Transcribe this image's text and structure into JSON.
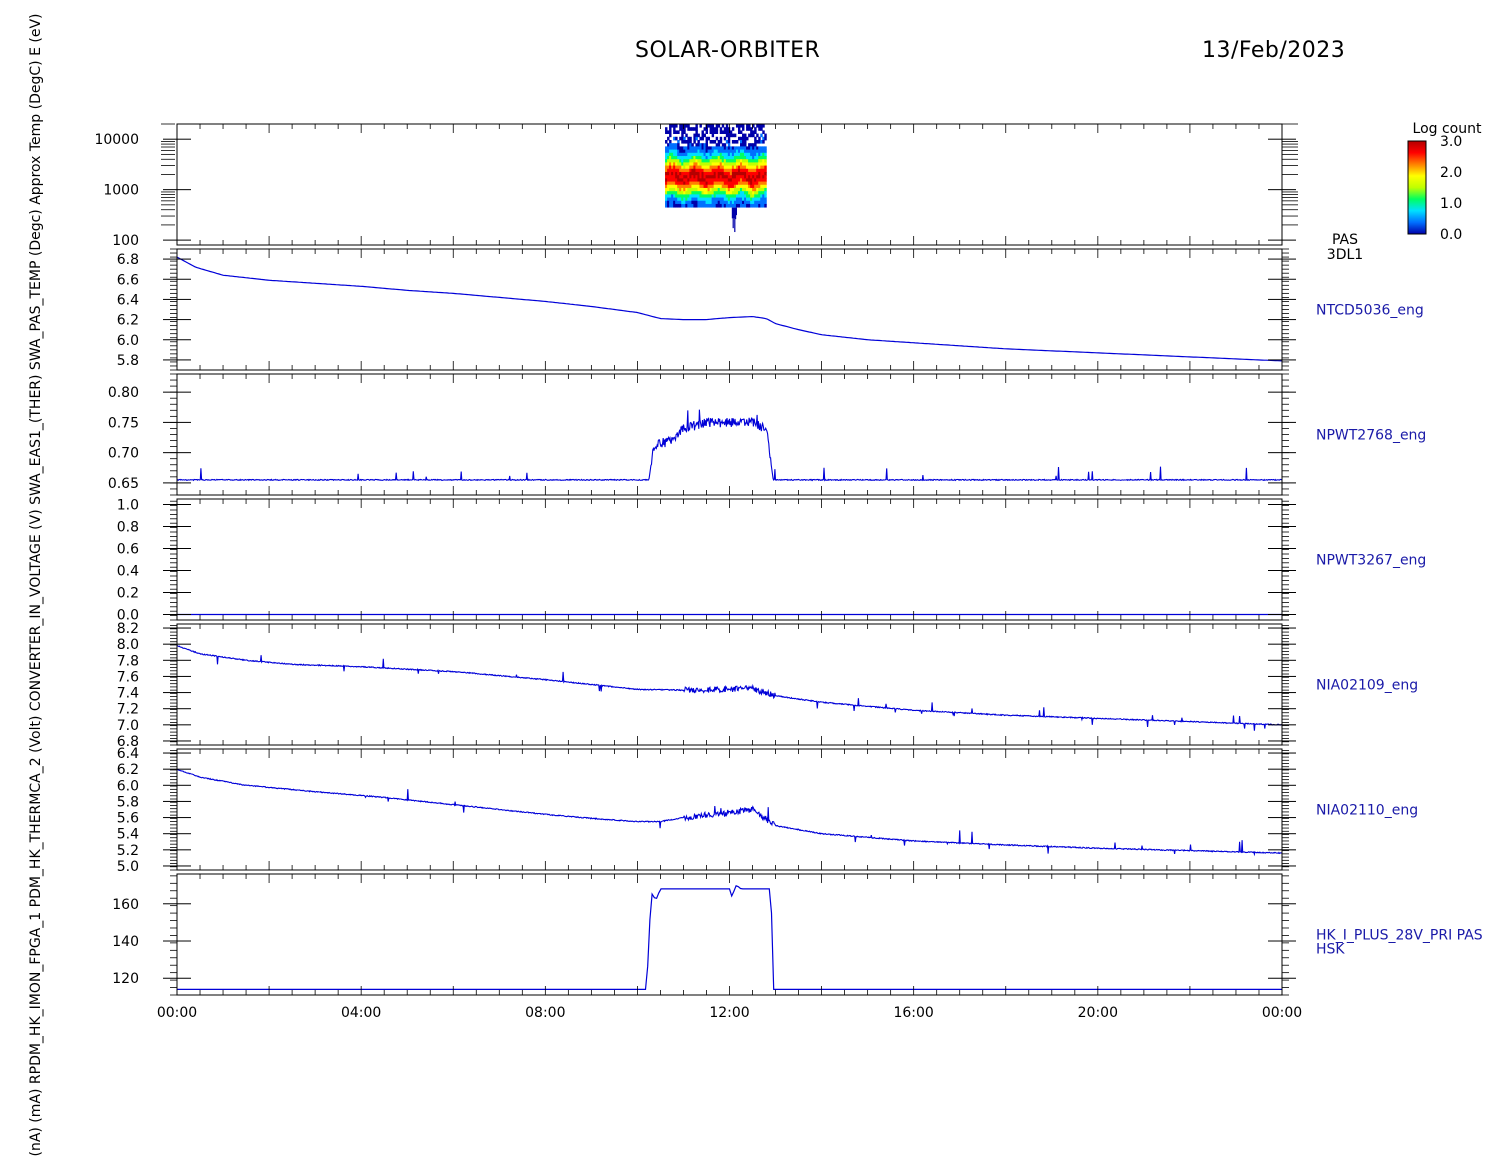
{
  "header": {
    "mission": "SOLAR-ORBITER",
    "date": "13/Feb/2023"
  },
  "side_label": {
    "lines": [
      "(nA)",
      "(mA)",
      "RPDM_HK_IMON_FPGA_1",
      "PDM_HK_THERMCA_2 (Volt)",
      "CONVERTER_IN_VOLTAGE (V)",
      "SWA_EAS1_(THER)",
      "SWA_PAS_TEMP (Degc)",
      "Approx Temp (DegC)",
      "E (eV)"
    ]
  },
  "colorbar": {
    "title": "Log count",
    "ticks": [
      "3.0",
      "2.0",
      "1.0",
      "0.0"
    ],
    "stops": [
      "#0000aa",
      "#0070ff",
      "#00e0ff",
      "#00ff60",
      "#c0ff00",
      "#ffff00",
      "#ff8000",
      "#ff0000",
      "#b40000"
    ]
  },
  "x_axis": {
    "ticks": [
      "00:00",
      "04:00",
      "08:00",
      "12:00",
      "16:00",
      "20:00",
      "00:00"
    ],
    "hours": [
      0,
      4,
      8,
      12,
      16,
      20,
      24
    ],
    "range": [
      0,
      24
    ]
  },
  "colors": {
    "trace": "#0000d8",
    "label": "#1a1aa8",
    "axis": "#000000"
  },
  "chart_data": [
    {
      "type": "heatmap",
      "panel_label": [
        "PAS",
        "3DL1"
      ],
      "y_scale": "log",
      "y_ticks": [
        "10000",
        "1000",
        "100"
      ],
      "y_tick_values": [
        10000,
        1000,
        100
      ],
      "ylim": [
        80,
        20000
      ],
      "x_range": [
        10.6,
        12.8
      ],
      "peak_energy_ev": 1800,
      "log_count_range": [
        0,
        3
      ]
    },
    {
      "type": "line",
      "panel_label": [
        "NTCD5036_eng"
      ],
      "y_ticks": [
        "6.8",
        "6.6",
        "6.4",
        "6.2",
        "6.0",
        "5.8"
      ],
      "y_tick_values": [
        6.8,
        6.6,
        6.4,
        6.2,
        6.0,
        5.8
      ],
      "ylim": [
        5.7,
        6.9
      ],
      "x": [
        0,
        0.4,
        1,
        2,
        3,
        4,
        5,
        6,
        7,
        8,
        9,
        10,
        10.5,
        11,
        11.5,
        12,
        12.5,
        12.8,
        13,
        13.5,
        14,
        15,
        16,
        17,
        18,
        19,
        20,
        21,
        22,
        23,
        24
      ],
      "y": [
        6.82,
        6.72,
        6.64,
        6.59,
        6.56,
        6.53,
        6.49,
        6.46,
        6.42,
        6.38,
        6.33,
        6.27,
        6.21,
        6.2,
        6.2,
        6.22,
        6.23,
        6.21,
        6.16,
        6.1,
        6.05,
        6.0,
        5.97,
        5.94,
        5.91,
        5.89,
        5.87,
        5.85,
        5.83,
        5.81,
        5.79
      ]
    },
    {
      "type": "line",
      "panel_label": [
        "NPWT2768_eng"
      ],
      "y_ticks": [
        "0.80",
        "0.75",
        "0.70",
        "0.65"
      ],
      "y_tick_values": [
        0.8,
        0.75,
        0.7,
        0.65
      ],
      "ylim": [
        0.63,
        0.83
      ],
      "x": [
        0,
        10.25,
        10.35,
        10.7,
        11.0,
        11.5,
        12.0,
        12.5,
        12.8,
        12.95,
        24
      ],
      "y": [
        0.655,
        0.655,
        0.71,
        0.72,
        0.74,
        0.75,
        0.75,
        0.75,
        0.74,
        0.655,
        0.655
      ]
    },
    {
      "type": "line",
      "panel_label": [
        "NPWT3267_eng"
      ],
      "y_ticks": [
        "1.0",
        "0.8",
        "0.6",
        "0.4",
        "0.2",
        "0.0"
      ],
      "y_tick_values": [
        1.0,
        0.8,
        0.6,
        0.4,
        0.2,
        0.0
      ],
      "ylim": [
        -0.05,
        1.05
      ],
      "x": [
        0,
        24
      ],
      "y": [
        0.0,
        0.0
      ]
    },
    {
      "type": "line",
      "panel_label": [
        "NIA02109_eng"
      ],
      "y_ticks": [
        "8.2",
        "8.0",
        "7.8",
        "7.6",
        "7.4",
        "7.2",
        "7.0",
        "6.8"
      ],
      "y_tick_values": [
        8.2,
        8.0,
        7.8,
        7.6,
        7.4,
        7.2,
        7.0,
        6.8
      ],
      "ylim": [
        6.75,
        8.25
      ],
      "x": [
        0,
        0.5,
        1.5,
        2.5,
        4,
        6,
        8,
        10,
        11,
        12,
        12.5,
        13,
        14,
        16,
        18,
        20,
        22,
        24
      ],
      "y": [
        7.98,
        7.88,
        7.8,
        7.75,
        7.72,
        7.66,
        7.56,
        7.44,
        7.43,
        7.44,
        7.45,
        7.36,
        7.28,
        7.18,
        7.12,
        7.08,
        7.04,
        7.0
      ]
    },
    {
      "type": "line",
      "panel_label": [
        "NIA02110_eng"
      ],
      "y_ticks": [
        "6.4",
        "6.2",
        "6.0",
        "5.8",
        "5.6",
        "5.4",
        "5.2",
        "5.0"
      ],
      "y_tick_values": [
        6.4,
        6.2,
        6.0,
        5.8,
        5.6,
        5.4,
        5.2,
        5.0
      ],
      "ylim": [
        4.95,
        6.45
      ],
      "x": [
        0,
        0.5,
        1.5,
        3,
        4.5,
        6,
        8,
        9,
        10,
        10.5,
        11,
        12,
        12.5,
        13,
        14,
        16,
        18,
        20,
        22,
        24
      ],
      "y": [
        6.2,
        6.1,
        6.0,
        5.92,
        5.85,
        5.76,
        5.64,
        5.59,
        5.55,
        5.55,
        5.6,
        5.66,
        5.7,
        5.5,
        5.4,
        5.31,
        5.26,
        5.22,
        5.19,
        5.16
      ]
    },
    {
      "type": "line",
      "panel_label": [
        "HK_I_PLUS_28V_PRI PAS",
        "HSK"
      ],
      "y_ticks": [
        "160",
        "140",
        "120"
      ],
      "y_tick_values": [
        160,
        140,
        120
      ],
      "ylim": [
        111,
        176
      ],
      "x": [
        0,
        10.2,
        10.3,
        10.4,
        10.5,
        11.0,
        12.0,
        12.05,
        12.15,
        12.25,
        12.3,
        12.9,
        12.95,
        24
      ],
      "y": [
        114,
        114,
        166,
        162,
        168,
        168,
        168,
        164,
        170,
        168,
        168,
        168,
        114,
        114
      ]
    }
  ]
}
